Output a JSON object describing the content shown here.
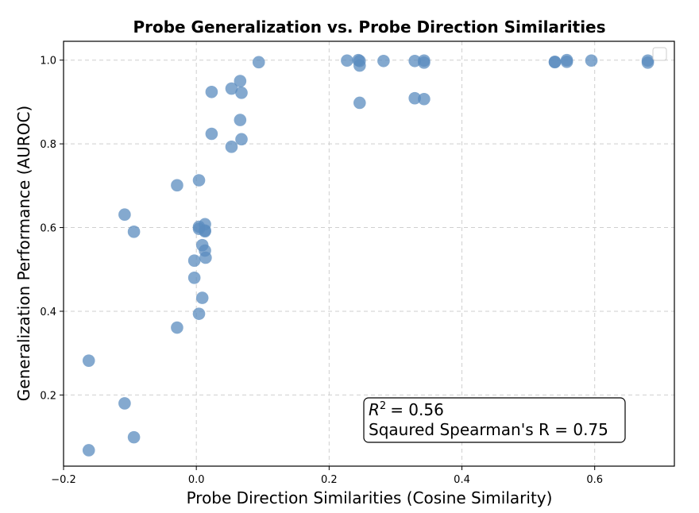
{
  "chart_data": {
    "type": "scatter",
    "title": "Probe Generalization vs. Probe Direction Similarities",
    "xlabel": "Probe Direction Similarities (Cosine Similarity)",
    "ylabel": "Generalization Performance (AUROC)",
    "xlim": [
      -0.2,
      0.72
    ],
    "ylim": [
      0.03,
      1.045
    ],
    "xticks": [
      -0.2,
      0.0,
      0.2,
      0.4,
      0.6
    ],
    "xtick_labels": [
      "−0.2",
      "0.0",
      "0.2",
      "0.4",
      "0.6"
    ],
    "yticks": [
      0.2,
      0.4,
      0.6,
      0.8,
      1.0
    ],
    "ytick_labels": [
      "0.2",
      "0.4",
      "0.6",
      "0.8",
      "1.0"
    ],
    "grid": true,
    "legend": "top-right (empty)",
    "marker_color": "#5b8cbf",
    "annotation_line2": "Sqaured Spearman's R = 0.75",
    "annotation_r2_value": "= 0.56",
    "annotation_r2_symbol": "R",
    "annotation_r2_exp": "2",
    "points": [
      {
        "x": -0.162,
        "y": 0.282
      },
      {
        "x": -0.162,
        "y": 0.068
      },
      {
        "x": -0.108,
        "y": 0.631
      },
      {
        "x": -0.108,
        "y": 0.18
      },
      {
        "x": -0.094,
        "y": 0.59
      },
      {
        "x": -0.094,
        "y": 0.099
      },
      {
        "x": -0.029,
        "y": 0.701
      },
      {
        "x": -0.029,
        "y": 0.361
      },
      {
        "x": -0.003,
        "y": 0.521
      },
      {
        "x": -0.003,
        "y": 0.48
      },
      {
        "x": 0.004,
        "y": 0.713
      },
      {
        "x": 0.004,
        "y": 0.602
      },
      {
        "x": 0.004,
        "y": 0.597
      },
      {
        "x": 0.004,
        "y": 0.394
      },
      {
        "x": 0.009,
        "y": 0.558
      },
      {
        "x": 0.009,
        "y": 0.432
      },
      {
        "x": 0.013,
        "y": 0.608
      },
      {
        "x": 0.013,
        "y": 0.593
      },
      {
        "x": 0.013,
        "y": 0.591
      },
      {
        "x": 0.013,
        "y": 0.545
      },
      {
        "x": 0.014,
        "y": 0.528
      },
      {
        "x": 0.023,
        "y": 0.924
      },
      {
        "x": 0.023,
        "y": 0.824
      },
      {
        "x": 0.053,
        "y": 0.932
      },
      {
        "x": 0.053,
        "y": 0.793
      },
      {
        "x": 0.066,
        "y": 0.95
      },
      {
        "x": 0.066,
        "y": 0.857
      },
      {
        "x": 0.068,
        "y": 0.922
      },
      {
        "x": 0.068,
        "y": 0.811
      },
      {
        "x": 0.094,
        "y": 0.995
      },
      {
        "x": 0.227,
        "y": 0.999
      },
      {
        "x": 0.244,
        "y": 1.0
      },
      {
        "x": 0.246,
        "y": 0.998
      },
      {
        "x": 0.246,
        "y": 0.987
      },
      {
        "x": 0.246,
        "y": 0.898
      },
      {
        "x": 0.282,
        "y": 0.998
      },
      {
        "x": 0.329,
        "y": 0.998
      },
      {
        "x": 0.329,
        "y": 0.909
      },
      {
        "x": 0.343,
        "y": 0.999
      },
      {
        "x": 0.343,
        "y": 0.994
      },
      {
        "x": 0.343,
        "y": 0.907
      },
      {
        "x": 0.54,
        "y": 0.996
      },
      {
        "x": 0.54,
        "y": 0.995
      },
      {
        "x": 0.558,
        "y": 1.0
      },
      {
        "x": 0.558,
        "y": 0.996
      },
      {
        "x": 0.595,
        "y": 0.999
      },
      {
        "x": 0.68,
        "y": 0.999
      },
      {
        "x": 0.68,
        "y": 0.994
      }
    ]
  }
}
